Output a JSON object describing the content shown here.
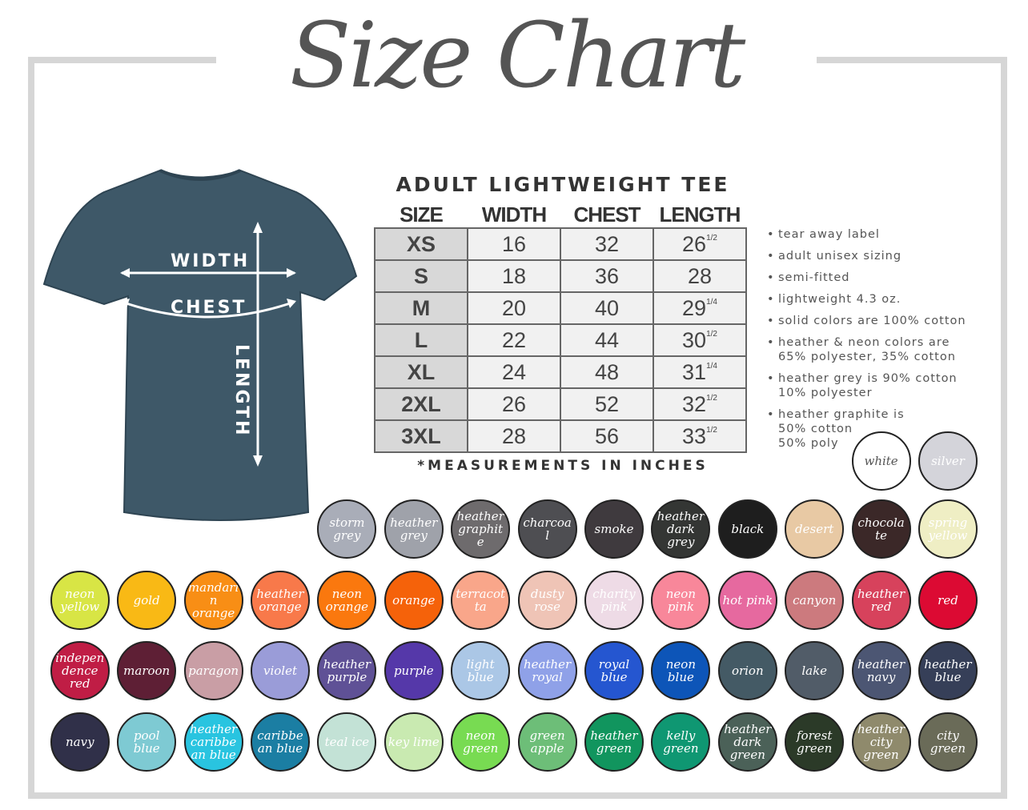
{
  "title": "Size Chart",
  "product": "ADULT LIGHTWEIGHT TEE",
  "shirt": {
    "color": "#3e5868",
    "labels": {
      "width": "WIDTH",
      "chest": "CHEST",
      "length": "LENGTH"
    }
  },
  "table": {
    "headers": [
      "SIZE",
      "WIDTH",
      "CHEST",
      "LENGTH"
    ],
    "rows": [
      {
        "size": "XS",
        "width": "16",
        "chest": "32",
        "length": "26",
        "length_fraction": "1/2"
      },
      {
        "size": "S",
        "width": "18",
        "chest": "36",
        "length": "28",
        "length_fraction": ""
      },
      {
        "size": "M",
        "width": "20",
        "chest": "40",
        "length": "29",
        "length_fraction": "1/4"
      },
      {
        "size": "L",
        "width": "22",
        "chest": "44",
        "length": "30",
        "length_fraction": "1/2"
      },
      {
        "size": "XL",
        "width": "24",
        "chest": "48",
        "length": "31",
        "length_fraction": "1/4"
      },
      {
        "size": "2XL",
        "width": "26",
        "chest": "52",
        "length": "32",
        "length_fraction": "1/2"
      },
      {
        "size": "3XL",
        "width": "28",
        "chest": "56",
        "length": "33",
        "length_fraction": "1/2"
      }
    ],
    "note": "*MEASUREMENTS IN INCHES"
  },
  "features": [
    "tear away label",
    "adult unisex sizing",
    "semi-fitted",
    "lightweight 4.3 oz.",
    "solid colors are 100% cotton",
    "heather & neon colors are\n65% polyester, 35% cotton",
    "heather grey is 90% cotton\n10% polyester",
    "heather graphite is\n50% cotton\n50% poly"
  ],
  "color_rows": [
    [
      {
        "name": "white",
        "hex": "#ffffff",
        "text": "#555555"
      },
      {
        "name": "silver",
        "hex": "#d4d4da"
      }
    ],
    [
      {
        "name": "storm grey",
        "hex": "#a9adb8"
      },
      {
        "name": "heather grey",
        "hex": "#9fa2aa"
      },
      {
        "name": "heather graphite",
        "hex": "#6e6b6d"
      },
      {
        "name": "charcoal",
        "hex": "#4e4e52"
      },
      {
        "name": "smoke",
        "hex": "#3f3a3e"
      },
      {
        "name": "heather dark grey",
        "hex": "#343634"
      },
      {
        "name": "black",
        "hex": "#1e1e1e"
      },
      {
        "name": "desert",
        "hex": "#e8c9a4"
      },
      {
        "name": "chocolate",
        "hex": "#3b2828"
      },
      {
        "name": "spring yellow",
        "hex": "#efeec4"
      }
    ],
    [
      {
        "name": "neon yellow",
        "hex": "#d8e545"
      },
      {
        "name": "gold",
        "hex": "#f9b915"
      },
      {
        "name": "mandarin orange",
        "hex": "#f88e15"
      },
      {
        "name": "heather orange",
        "hex": "#f8794a"
      },
      {
        "name": "neon orange",
        "hex": "#fa780e"
      },
      {
        "name": "orange",
        "hex": "#f5620a"
      },
      {
        "name": "terracotta",
        "hex": "#f9a68a"
      },
      {
        "name": "dusty rose",
        "hex": "#efc4b6"
      },
      {
        "name": "charity pink",
        "hex": "#eedbe6"
      },
      {
        "name": "neon pink",
        "hex": "#f8879a"
      },
      {
        "name": "hot pink",
        "hex": "#e6699f"
      },
      {
        "name": "canyon",
        "hex": "#cc7a7e"
      },
      {
        "name": "heather red",
        "hex": "#d7425c"
      },
      {
        "name": "red",
        "hex": "#dc0a33"
      }
    ],
    [
      {
        "name": "independence red",
        "hex": "#c01d45"
      },
      {
        "name": "maroon",
        "hex": "#5e1f35"
      },
      {
        "name": "paragon",
        "hex": "#c99ea5"
      },
      {
        "name": "violet",
        "hex": "#9a9cd8"
      },
      {
        "name": "heather purple",
        "hex": "#5f5196"
      },
      {
        "name": "purple",
        "hex": "#5538a9"
      },
      {
        "name": "light blue",
        "hex": "#abc7e6"
      },
      {
        "name": "heather royal",
        "hex": "#8fa1e8"
      },
      {
        "name": "royal blue",
        "hex": "#2556d0"
      },
      {
        "name": "neon blue",
        "hex": "#0d55b8"
      },
      {
        "name": "orion",
        "hex": "#445a65"
      },
      {
        "name": "lake",
        "hex": "#515c68"
      },
      {
        "name": "heather navy",
        "hex": "#4c5673"
      },
      {
        "name": "heather blue",
        "hex": "#363f58"
      }
    ],
    [
      {
        "name": "navy",
        "hex": "#303049"
      },
      {
        "name": "pool blue",
        "hex": "#7ecad3"
      },
      {
        "name": "heather caribbean blue",
        "hex": "#29c4e0"
      },
      {
        "name": "caribbean blue",
        "hex": "#1b7ea3"
      },
      {
        "name": "teal ice",
        "hex": "#c3e2d6"
      },
      {
        "name": "key lime",
        "hex": "#c9eab1"
      },
      {
        "name": "neon green",
        "hex": "#78db52"
      },
      {
        "name": "green apple",
        "hex": "#6dbe78"
      },
      {
        "name": "heather green",
        "hex": "#11955e"
      },
      {
        "name": "kelly green",
        "hex": "#0f9772"
      },
      {
        "name": "heather dark green",
        "hex": "#4b6158"
      },
      {
        "name": "forest green",
        "hex": "#2b3a28"
      },
      {
        "name": "heather city green",
        "hex": "#8f8a6c"
      },
      {
        "name": "city green",
        "hex": "#6a6b58"
      }
    ]
  ]
}
